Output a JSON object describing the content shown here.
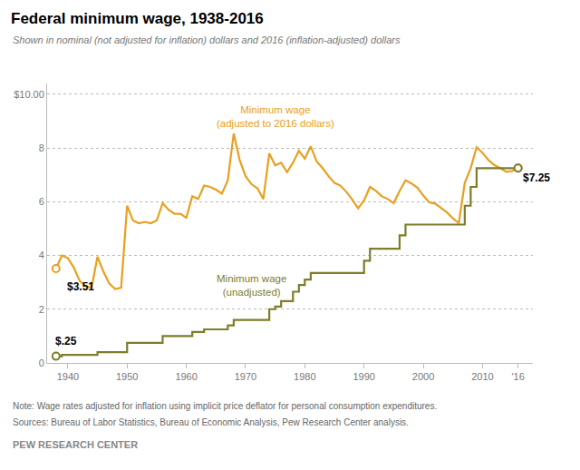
{
  "chart_data": {
    "type": "line",
    "title": "Federal minimum wage, 1938-2016",
    "subtitle": "Shown in nominal (not adjusted for inflation) dollars and 2016 (inflation-adjusted) dollars",
    "note": "Note: Wage rates adjusted for inflation using implicit price deflator for personal consumption expenditures.",
    "sources": "Sources: Bureau of Labor Statistics, Bureau of Economic Analysis, Pew Research Center analysis.",
    "credit": "PEW RESEARCH CENTER",
    "x": [
      1938,
      1939,
      1940,
      1941,
      1942,
      1943,
      1944,
      1945,
      1946,
      1947,
      1948,
      1949,
      1950,
      1951,
      1952,
      1953,
      1954,
      1955,
      1956,
      1957,
      1958,
      1959,
      1960,
      1961,
      1962,
      1963,
      1964,
      1965,
      1966,
      1967,
      1968,
      1969,
      1970,
      1971,
      1972,
      1973,
      1974,
      1975,
      1976,
      1977,
      1978,
      1979,
      1980,
      1981,
      1982,
      1983,
      1984,
      1985,
      1986,
      1987,
      1988,
      1989,
      1990,
      1991,
      1992,
      1993,
      1994,
      1995,
      1996,
      1997,
      1998,
      1999,
      2000,
      2001,
      2002,
      2003,
      2004,
      2005,
      2006,
      2007,
      2008,
      2009,
      2010,
      2011,
      2012,
      2013,
      2014,
      2015,
      2016
    ],
    "series": [
      {
        "color": "#E8A020",
        "line_style": "solid",
        "marker": "endpoints",
        "values": [
          3.51,
          4.0,
          3.9,
          3.55,
          3.05,
          2.85,
          2.8,
          3.95,
          3.4,
          2.95,
          2.75,
          2.8,
          5.85,
          5.3,
          5.2,
          5.25,
          5.2,
          5.3,
          5.95,
          5.7,
          5.55,
          5.55,
          5.4,
          6.2,
          6.1,
          6.6,
          6.55,
          6.45,
          6.3,
          6.8,
          8.54,
          7.55,
          6.95,
          6.65,
          6.5,
          6.1,
          7.8,
          7.35,
          7.45,
          7.1,
          7.45,
          7.9,
          7.6,
          8.06,
          7.5,
          7.25,
          6.95,
          6.7,
          6.6,
          6.37,
          6.08,
          5.75,
          6.05,
          6.55,
          6.4,
          6.2,
          6.1,
          5.95,
          6.4,
          6.8,
          6.68,
          6.52,
          6.23,
          5.98,
          5.93,
          5.78,
          5.6,
          5.38,
          5.2,
          6.7,
          7.25,
          8.03,
          7.82,
          7.55,
          7.36,
          7.25,
          7.11,
          7.14,
          7.25
        ]
      },
      {
        "color": "#7D7D2A",
        "line_style": "step",
        "marker": "endpoints",
        "values": [
          0.25,
          0.3,
          0.3,
          0.3,
          0.3,
          0.3,
          0.3,
          0.4,
          0.4,
          0.4,
          0.4,
          0.4,
          0.75,
          0.75,
          0.75,
          0.75,
          0.75,
          0.75,
          1.0,
          1.0,
          1.0,
          1.0,
          1.0,
          1.15,
          1.15,
          1.25,
          1.25,
          1.25,
          1.25,
          1.4,
          1.6,
          1.6,
          1.6,
          1.6,
          1.6,
          1.6,
          2.0,
          2.1,
          2.3,
          2.3,
          2.65,
          2.9,
          3.1,
          3.35,
          3.35,
          3.35,
          3.35,
          3.35,
          3.35,
          3.35,
          3.35,
          3.35,
          3.8,
          4.25,
          4.25,
          4.25,
          4.25,
          4.25,
          4.75,
          5.15,
          5.15,
          5.15,
          5.15,
          5.15,
          5.15,
          5.15,
          5.15,
          5.15,
          5.15,
          5.85,
          6.55,
          7.25,
          7.25,
          7.25,
          7.25,
          7.25,
          7.25,
          7.25,
          7.25
        ]
      }
    ],
    "annotations": [
      {
        "text": "$3.51",
        "x": 1939.5,
        "y": 3.15
      },
      {
        "text": "$.25",
        "x": 1937.5,
        "y": 0.52
      },
      {
        "text": "$7.25",
        "x": 2016.5,
        "y": 6.9
      },
      {
        "text": "Minimum wage\n(adjusted to 2016 dollars)",
        "x": 1975,
        "y": 8.65,
        "color": "#E8A020"
      },
      {
        "text": "Minimum wage\n(unadjusted)",
        "x": 1971,
        "y": 2.35,
        "color": "#7D7D2A"
      }
    ],
    "xlim": [
      1936.5,
      2018.5
    ],
    "xticks": [
      1940,
      1950,
      1960,
      1970,
      1980,
      1990,
      2000,
      2010,
      {
        "value": 2016,
        "label": "'16"
      }
    ],
    "ylim": [
      0,
      10.4
    ],
    "yticks": [
      0,
      2,
      4,
      6,
      8,
      {
        "value": 10,
        "label": "$10.00"
      }
    ],
    "grid": "y"
  }
}
